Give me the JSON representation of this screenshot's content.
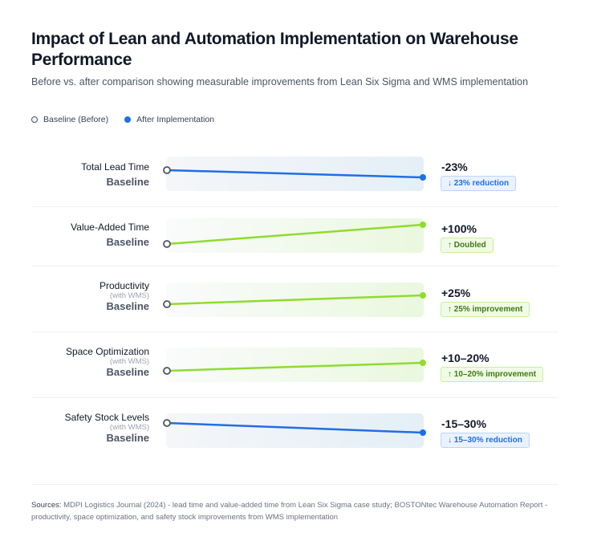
{
  "title": "Impact of Lean and Automation Implementation on Warehouse Performance",
  "subtitle": "Before vs. after comparison showing measurable improvements from Lean Six Sigma and WMS implementation",
  "legend": {
    "baseline": "Baseline (Before)",
    "after": "After Implementation"
  },
  "colors": {
    "decrease": "#1f6fe5",
    "increase": "#8fdc2c",
    "baseline_marker": "#4b5563"
  },
  "chart_data": {
    "type": "slope",
    "rows": [
      {
        "name": "Total Lead Time",
        "note": "",
        "baseline": "Baseline",
        "change": "-23%",
        "change_value": -23,
        "direction": "down",
        "badge": "↓ 23% reduction"
      },
      {
        "name": "Value-Added Time",
        "note": "",
        "baseline": "Baseline",
        "change": "+100%",
        "change_value": 100,
        "direction": "up",
        "badge": "↑ Doubled"
      },
      {
        "name": "Productivity",
        "note": "(with WMS)",
        "baseline": "Baseline",
        "change": "+25%",
        "change_value": 25,
        "direction": "up",
        "badge": "↑ 25% improvement"
      },
      {
        "name": "Space Optimization",
        "note": "(with WMS)",
        "baseline": "Baseline",
        "change": "+10–20%",
        "change_value": [
          10,
          20
        ],
        "direction": "up",
        "badge": "↑ 10–20% improvement"
      },
      {
        "name": "Safety Stock Levels",
        "note": "(with WMS)",
        "baseline": "Baseline",
        "change": "-15–30%",
        "change_value": [
          -15,
          -30
        ],
        "direction": "down",
        "badge": "↓ 15–30% reduction"
      }
    ]
  },
  "sources": {
    "label": "Sources:",
    "text": " MDPI Logistics Journal (2024) - lead time and value-added time from Lean Six Sigma case study; BOSTONtec Warehouse Automation Report - productivity, space optimization, and safety stock improvements from WMS implementation"
  }
}
